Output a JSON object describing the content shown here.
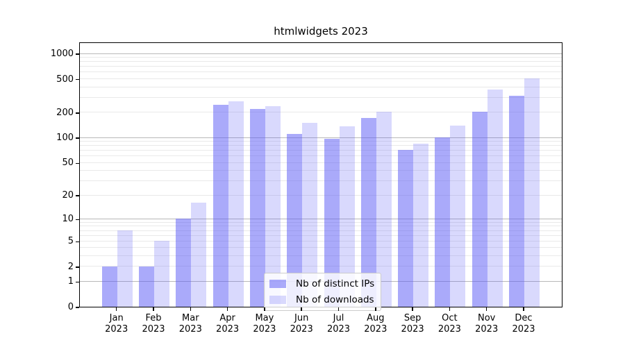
{
  "chart_data": {
    "type": "bar",
    "title": "htmlwidgets 2023",
    "categories": [
      "Jan",
      "Feb",
      "Mar",
      "Apr",
      "May",
      "Jun",
      "Jul",
      "Aug",
      "Sep",
      "Oct",
      "Nov",
      "Dec"
    ],
    "year_label": "2023",
    "series": [
      {
        "name": "Nb of distinct IPs",
        "color": "rgba(92,92,246,0.52)",
        "values": [
          2,
          2,
          10,
          245,
          220,
          110,
          97,
          170,
          71,
          100,
          205,
          315
        ]
      },
      {
        "name": "Nb of downloads",
        "color": "rgba(92,92,246,0.23)",
        "values": [
          7,
          5,
          16,
          270,
          235,
          150,
          135,
          205,
          85,
          140,
          370,
          510
        ]
      }
    ],
    "y_axis": {
      "scale": "log1p",
      "ticks": [
        0,
        1,
        2,
        5,
        10,
        20,
        50,
        100,
        200,
        500,
        1000
      ],
      "grid_major": [
        1,
        10,
        100,
        1000
      ],
      "grid_minor": [
        2,
        3,
        4,
        5,
        6,
        7,
        8,
        9,
        20,
        30,
        40,
        50,
        60,
        70,
        80,
        90,
        200,
        300,
        400,
        500,
        600,
        700,
        800,
        900
      ],
      "ylim": [
        0,
        1380
      ]
    },
    "xlabel": "",
    "ylabel": "",
    "grid": true,
    "legend_position": "lower-center-inside"
  },
  "colors": {
    "background": "#ffffff",
    "axis": "#000000",
    "grid_major": "#b8b8b8",
    "grid_minor": "#e9e9e9",
    "bar_base": "#5c5cf6",
    "legend_border": "#cccccc",
    "legend_background": "rgba(255,255,255,0.8)"
  }
}
